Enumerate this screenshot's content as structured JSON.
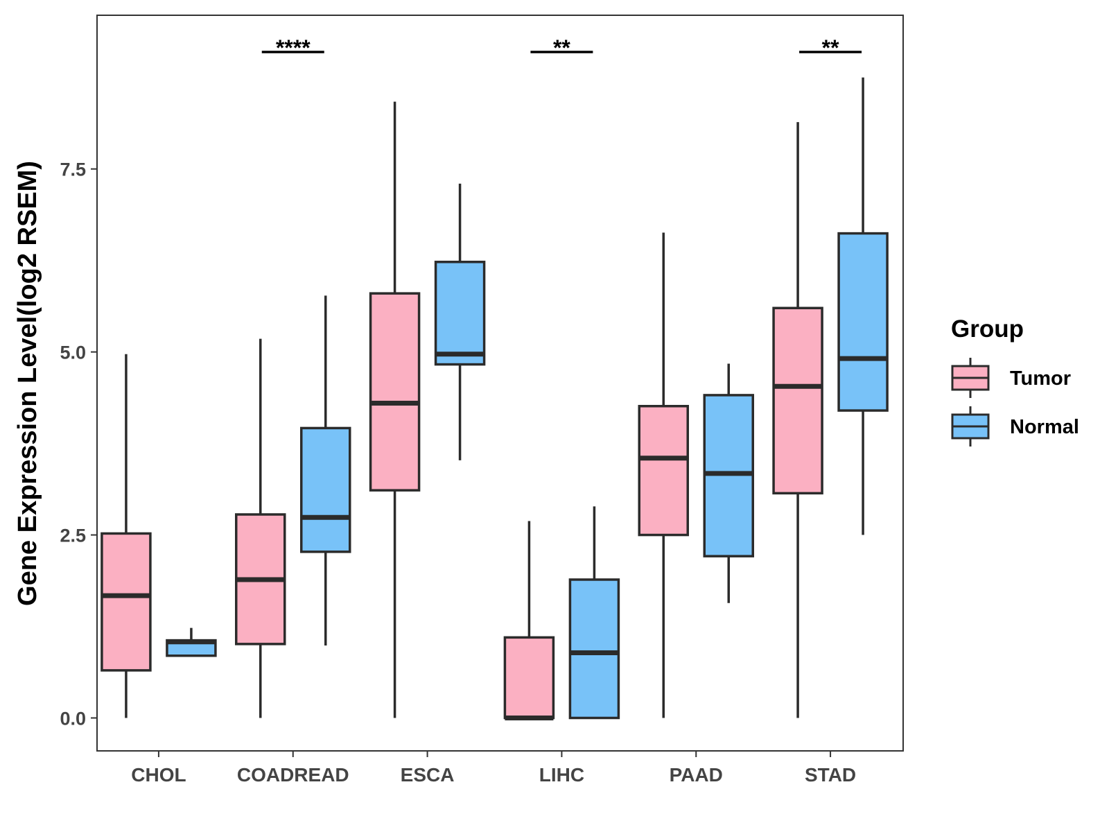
{
  "chart_data": {
    "type": "boxplot",
    "title": "",
    "xlabel": "",
    "ylabel": "Gene Expression Level(log2 RSEM)",
    "ylim": [
      -0.45,
      9.6
    ],
    "yticks": [
      0.0,
      2.5,
      5.0,
      7.5
    ],
    "ytick_labels": [
      "0.0",
      "2.5",
      "5.0",
      "7.5"
    ],
    "grid": false,
    "categories": [
      "CHOL",
      "COADREAD",
      "ESCA",
      "LIHC",
      "PAAD",
      "STAD"
    ],
    "legend": {
      "title": "Group",
      "position": "right",
      "entries": [
        {
          "name": "Tumor",
          "color": "#FBB0C2"
        },
        {
          "name": "Normal",
          "color": "#78C2F8"
        }
      ]
    },
    "series": [
      {
        "name": "Tumor",
        "color": "#FBB0C2",
        "boxes": [
          {
            "whisker_low": 0.0,
            "q1": 0.65,
            "median": 1.67,
            "q3": 2.52,
            "whisker_high": 4.97
          },
          {
            "whisker_low": 0.0,
            "q1": 1.01,
            "median": 1.89,
            "q3": 2.78,
            "whisker_high": 5.18
          },
          {
            "whisker_low": 0.0,
            "q1": 3.11,
            "median": 4.3,
            "q3": 5.8,
            "whisker_high": 8.42
          },
          {
            "whisker_low": 0.0,
            "q1": 0.0,
            "median": 0.0,
            "q3": 1.1,
            "whisker_high": 2.69
          },
          {
            "whisker_low": 0.0,
            "q1": 2.5,
            "median": 3.55,
            "q3": 4.26,
            "whisker_high": 6.63
          },
          {
            "whisker_low": 0.0,
            "q1": 3.07,
            "median": 4.53,
            "q3": 5.6,
            "whisker_high": 8.14
          }
        ]
      },
      {
        "name": "Normal",
        "color": "#78C2F8",
        "boxes": [
          {
            "whisker_low": 0.85,
            "q1": 0.85,
            "median": 1.04,
            "q3": 1.06,
            "whisker_high": 1.23
          },
          {
            "whisker_low": 0.99,
            "q1": 2.27,
            "median": 2.74,
            "q3": 3.96,
            "whisker_high": 5.77
          },
          {
            "whisker_low": 3.52,
            "q1": 4.83,
            "median": 4.97,
            "q3": 6.23,
            "whisker_high": 7.3
          },
          {
            "whisker_low": 0.0,
            "q1": 0.0,
            "median": 0.89,
            "q3": 1.89,
            "whisker_high": 2.89
          },
          {
            "whisker_low": 1.57,
            "q1": 2.21,
            "median": 3.34,
            "q3": 4.41,
            "whisker_high": 4.84
          },
          {
            "whisker_low": 2.5,
            "q1": 4.2,
            "median": 4.91,
            "q3": 6.62,
            "whisker_high": 8.75
          }
        ]
      }
    ],
    "annotations": [
      {
        "category": "COADREAD",
        "label": "****"
      },
      {
        "category": "LIHC",
        "label": "**"
      },
      {
        "category": "STAD",
        "label": "**"
      }
    ]
  }
}
